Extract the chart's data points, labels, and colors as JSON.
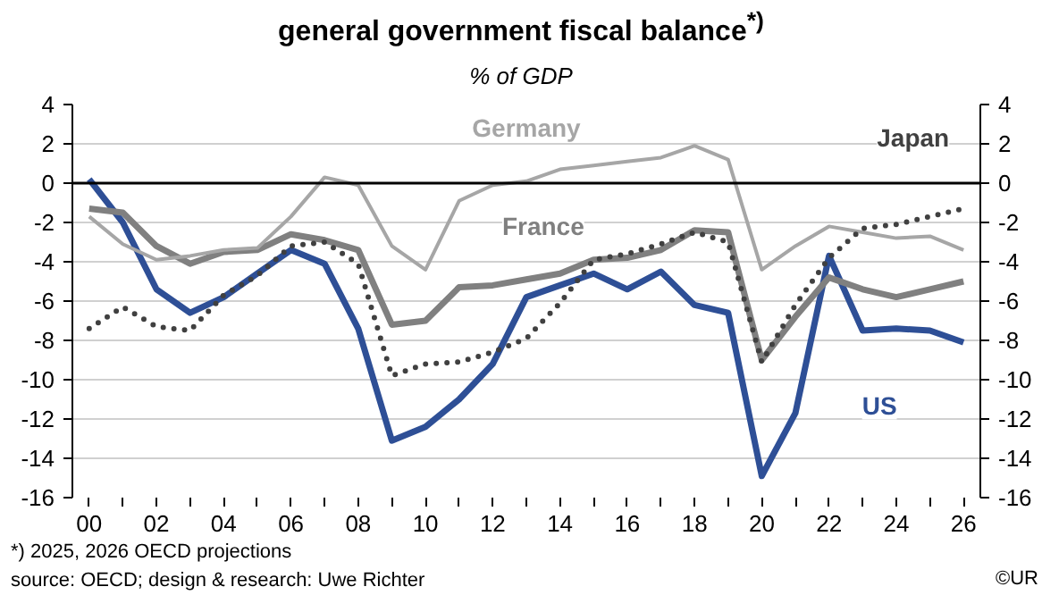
{
  "chart_data": {
    "type": "line",
    "title": "general government fiscal balance$^{*)}$",
    "subtitle": "% of GDP",
    "x": [
      2000,
      2001,
      2002,
      2003,
      2004,
      2005,
      2006,
      2007,
      2008,
      2009,
      2010,
      2011,
      2012,
      2013,
      2014,
      2015,
      2016,
      2017,
      2018,
      2019,
      2020,
      2021,
      2022,
      2023,
      2024,
      2025,
      2026
    ],
    "series": [
      {
        "name": "US",
        "color": "#2e4f96",
        "line_style": "solid",
        "values": [
          0.2,
          -2.0,
          -5.4,
          -6.6,
          -5.8,
          -4.6,
          -3.4,
          -4.1,
          -7.4,
          -13.1,
          -12.4,
          -11.0,
          -9.2,
          -5.8,
          -5.2,
          -4.6,
          -5.4,
          -4.5,
          -6.2,
          -6.6,
          -14.9,
          -11.7,
          -3.7,
          -7.5,
          -7.4,
          -7.5,
          -8.1
        ]
      },
      {
        "name": "France",
        "color": "#808080",
        "line_style": "solid",
        "values": [
          -1.3,
          -1.5,
          -3.2,
          -4.1,
          -3.5,
          -3.4,
          -2.6,
          -2.9,
          -3.4,
          -7.2,
          -7.0,
          -5.3,
          -5.2,
          -4.9,
          -4.6,
          -3.9,
          -3.8,
          -3.4,
          -2.4,
          -2.5,
          -9.0,
          -6.8,
          -4.8,
          -5.4,
          -5.8,
          -5.4,
          -5.0
        ]
      },
      {
        "name": "Germany",
        "color": "#a6a6a6",
        "line_style": "solid",
        "values": [
          -1.7,
          -3.1,
          -3.9,
          -3.7,
          -3.4,
          -3.3,
          -1.7,
          0.3,
          -0.1,
          -3.2,
          -4.4,
          -0.9,
          -0.1,
          0.1,
          0.7,
          0.9,
          1.1,
          1.3,
          1.9,
          1.2,
          -4.4,
          -3.2,
          -2.2,
          -2.5,
          -2.8,
          -2.7,
          -3.4
        ]
      },
      {
        "name": "Japan",
        "color": "#404040",
        "line_style": "dotted",
        "values": [
          -7.4,
          -6.3,
          -7.3,
          -7.5,
          -5.7,
          -4.7,
          -3.2,
          -3.0,
          -4.1,
          -9.8,
          -9.2,
          -9.1,
          -8.6,
          -7.9,
          -6.1,
          -3.9,
          -3.6,
          -3.1,
          -2.5,
          -3.0,
          -9.1,
          -6.2,
          -3.8,
          -2.3,
          -2.1,
          -1.7,
          -1.3
        ]
      }
    ],
    "xlim": [
      1999.5,
      2026.5
    ],
    "xticks": [
      {
        "value": 2000,
        "label": "00"
      },
      {
        "value": 2001,
        "label": null
      },
      {
        "value": 2002,
        "label": "02"
      },
      {
        "value": 2003,
        "label": null
      },
      {
        "value": 2004,
        "label": "04"
      },
      {
        "value": 2005,
        "label": null
      },
      {
        "value": 2006,
        "label": "06"
      },
      {
        "value": 2007,
        "label": null
      },
      {
        "value": 2008,
        "label": "08"
      },
      {
        "value": 2009,
        "label": null
      },
      {
        "value": 2010,
        "label": "10"
      },
      {
        "value": 2011,
        "label": null
      },
      {
        "value": 2012,
        "label": "12"
      },
      {
        "value": 2013,
        "label": null
      },
      {
        "value": 2014,
        "label": "14"
      },
      {
        "value": 2015,
        "label": null
      },
      {
        "value": 2016,
        "label": "16"
      },
      {
        "value": 2017,
        "label": null
      },
      {
        "value": 2018,
        "label": "18"
      },
      {
        "value": 2019,
        "label": null
      },
      {
        "value": 2020,
        "label": "20"
      },
      {
        "value": 2021,
        "label": null
      },
      {
        "value": 2022,
        "label": "22"
      },
      {
        "value": 2023,
        "label": null
      },
      {
        "value": 2024,
        "label": "24"
      },
      {
        "value": 2025,
        "label": null
      },
      {
        "value": 2026,
        "label": "26"
      }
    ],
    "ylim": [
      -16,
      4
    ],
    "yticks": [
      -16,
      -14,
      -12,
      -10,
      -8,
      -6,
      -4,
      -2,
      0,
      2,
      4
    ],
    "y2lim": [
      -16,
      4
    ],
    "y2ticks": [
      -16,
      -14,
      -12,
      -10,
      -8,
      -6,
      -4,
      -2,
      0,
      2,
      4
    ],
    "ref_lines": [
      {
        "axis": "y",
        "value": 0,
        "color": "#000000",
        "line_style": "solid"
      }
    ],
    "grid": "y",
    "marker": "none",
    "annotations": [
      "*) 2025, 2026 OECD  projections",
      "source: OECD;  design & research: Uwe Richter",
      "©UR"
    ]
  }
}
